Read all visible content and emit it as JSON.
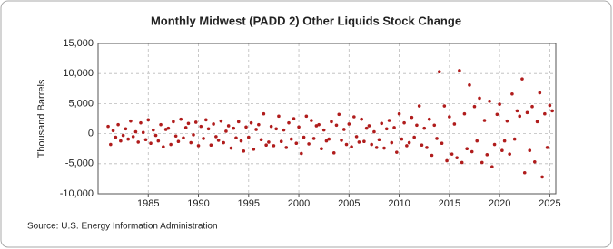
{
  "chart_data": {
    "type": "scatter",
    "title": "Monthly Midwest (PADD 2) Other Liquids Stock Change",
    "y_label": "Thousand Barrels",
    "source": "Source: U.S. Energy Information Administration",
    "color": "#b01c1c",
    "grid": true,
    "xlim": [
      1980,
      2025.6
    ],
    "xticks": [
      1985,
      1990,
      1995,
      2000,
      2005,
      2010,
      2015,
      2020,
      2025
    ],
    "ylim": [
      -10000,
      15000
    ],
    "yticks": [
      {
        "value": -10000,
        "label": "-10,000"
      },
      {
        "value": -5000,
        "label": "-5,000"
      },
      0,
      {
        "value": 5000,
        "label": "5,000"
      },
      {
        "value": 10000,
        "label": "10,000"
      },
      {
        "value": 15000,
        "label": "15,000"
      }
    ],
    "x": [
      1981,
      1981.25,
      1981.5,
      1981.75,
      1982,
      1982.25,
      1982.5,
      1982.75,
      1983,
      1983.25,
      1983.5,
      1983.75,
      1984,
      1984.25,
      1984.5,
      1984.75,
      1985,
      1985.25,
      1985.5,
      1985.75,
      1986,
      1986.25,
      1986.5,
      1986.75,
      1987,
      1987.25,
      1987.5,
      1987.75,
      1988,
      1988.25,
      1988.5,
      1988.75,
      1989,
      1989.25,
      1989.5,
      1989.75,
      1990,
      1990.25,
      1990.5,
      1990.75,
      1991,
      1991.25,
      1991.5,
      1991.75,
      1992,
      1992.25,
      1992.5,
      1992.75,
      1993,
      1993.25,
      1993.5,
      1993.75,
      1994,
      1994.25,
      1994.5,
      1994.75,
      1995,
      1995.25,
      1995.5,
      1995.75,
      1996,
      1996.25,
      1996.5,
      1996.75,
      1997,
      1997.25,
      1997.5,
      1997.75,
      1998,
      1998.25,
      1998.5,
      1998.75,
      1999,
      1999.25,
      1999.5,
      1999.75,
      2000,
      2000.25,
      2000.5,
      2000.75,
      2001,
      2001.25,
      2001.5,
      2001.75,
      2002,
      2002.25,
      2002.5,
      2002.75,
      2003,
      2003.25,
      2003.5,
      2003.75,
      2004,
      2004.25,
      2004.5,
      2004.75,
      2005,
      2005.25,
      2005.5,
      2005.75,
      2006,
      2006.25,
      2006.5,
      2006.75,
      2007,
      2007.25,
      2007.5,
      2007.75,
      2008,
      2008.25,
      2008.5,
      2008.75,
      2009,
      2009.25,
      2009.5,
      2009.75,
      2010,
      2010.25,
      2010.5,
      2010.75,
      2011,
      2011.25,
      2011.5,
      2011.75,
      2012,
      2012.25,
      2012.5,
      2012.75,
      2013,
      2013.25,
      2013.5,
      2013.75,
      2014,
      2014.25,
      2014.5,
      2014.75,
      2015,
      2015.25,
      2015.5,
      2015.75,
      2016,
      2016.25,
      2016.5,
      2016.75,
      2017,
      2017.25,
      2017.5,
      2017.75,
      2018,
      2018.25,
      2018.5,
      2018.75,
      2019,
      2019.25,
      2019.5,
      2019.75,
      2020,
      2020.25,
      2020.5,
      2020.75,
      2021,
      2021.25,
      2021.5,
      2021.75,
      2022,
      2022.25,
      2022.5,
      2022.75,
      2023,
      2023.25,
      2023.5,
      2023.75,
      2024,
      2024.25,
      2024.5,
      2024.75,
      2025,
      2025.25
    ],
    "values": [
      1200,
      -1800,
      500,
      -600,
      1500,
      -1200,
      -300,
      800,
      -900,
      2100,
      -500,
      300,
      -1400,
      1800,
      200,
      -1000,
      2300,
      -1600,
      600,
      -300,
      -1200,
      1500,
      -2200,
      700,
      900,
      -1800,
      2000,
      -400,
      -1300,
      2400,
      -700,
      1000,
      1700,
      -1500,
      -200,
      1900,
      -2000,
      1200,
      -800,
      2300,
      800,
      -1900,
      1600,
      -500,
      -1100,
      2100,
      -1500,
      400,
      1300,
      -2400,
      900,
      -700,
      2000,
      -1200,
      -2900,
      1100,
      -600,
      1800,
      -2600,
      700,
      1500,
      -1000,
      3300,
      -1900,
      -1400,
      1200,
      -2000,
      800,
      2900,
      -1300,
      600,
      -2300,
      1800,
      -900,
      2500,
      -1600,
      1100,
      -3300,
      -600,
      2900,
      -1700,
      2200,
      -800,
      1300,
      1500,
      -2500,
      600,
      -1200,
      -900,
      2000,
      -3200,
      1400,
      3200,
      -1100,
      700,
      -1800,
      1600,
      -2200,
      2800,
      -500,
      -1400,
      2400,
      -1300,
      900,
      1300,
      -1800,
      300,
      -2300,
      -1000,
      1700,
      -2400,
      800,
      2200,
      -1500,
      1000,
      -3100,
      3300,
      -900,
      1800,
      -2000,
      -1500,
      2700,
      -600,
      1400,
      4600,
      -1900,
      900,
      -2300,
      2400,
      -3600,
      1400,
      -800,
      10300,
      -1600,
      4600,
      -4500,
      2800,
      -3400,
      1600,
      -4000,
      10500,
      -4800,
      3300,
      -2500,
      8100,
      -3000,
      4500,
      -1200,
      5900,
      -4800,
      2200,
      -3500,
      5400,
      -5500,
      -1800,
      3200,
      4900,
      -2800,
      -1200,
      2100,
      -3400,
      6600,
      -900,
      3800,
      2900,
      9100,
      -6500,
      3500,
      -2800,
      4500,
      -4700,
      2000,
      6800,
      -7200,
      3300,
      -2300,
      4700,
      3800
    ]
  }
}
